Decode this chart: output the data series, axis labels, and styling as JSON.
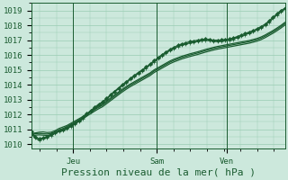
{
  "bg_color": "#cce8dc",
  "plot_bg_color": "#cce8dc",
  "grid_color": "#99ccb3",
  "line_color": "#1a5c30",
  "xlabel": "Pression niveau de la mer( hPa )",
  "xlabel_fontsize": 8,
  "tick_label_color": "#1a5c30",
  "tick_fontsize": 6.5,
  "ylim": [
    1009.7,
    1019.5
  ],
  "yticks": [
    1010,
    1011,
    1012,
    1013,
    1014,
    1015,
    1016,
    1017,
    1018,
    1019
  ],
  "vline_positions": [
    0.165,
    0.495,
    0.77
  ],
  "vline_labels": [
    "Jeu",
    "Sam",
    "Ven"
  ],
  "num_points": 65,
  "lines": [
    {
      "y": [
        1010.7,
        1010.75,
        1010.8,
        1010.82,
        1010.78,
        1010.8,
        1010.9,
        1011.05,
        1011.15,
        1011.25,
        1011.4,
        1011.55,
        1011.7,
        1011.85,
        1012.05,
        1012.2,
        1012.38,
        1012.55,
        1012.7,
        1012.9,
        1013.1,
        1013.3,
        1013.5,
        1013.7,
        1013.88,
        1014.05,
        1014.2,
        1014.35,
        1014.5,
        1014.65,
        1014.8,
        1015.0,
        1015.15,
        1015.3,
        1015.45,
        1015.6,
        1015.72,
        1015.82,
        1015.92,
        1016.0,
        1016.08,
        1016.15,
        1016.22,
        1016.3,
        1016.38,
        1016.45,
        1016.52,
        1016.58,
        1016.63,
        1016.68,
        1016.73,
        1016.78,
        1016.83,
        1016.88,
        1016.93,
        1016.98,
        1017.05,
        1017.12,
        1017.22,
        1017.35,
        1017.5,
        1017.65,
        1017.82,
        1018.0,
        1018.2
      ],
      "marker": false,
      "linewidth": 0.9
    },
    {
      "y": [
        1010.65,
        1010.7,
        1010.72,
        1010.7,
        1010.68,
        1010.72,
        1010.82,
        1010.95,
        1011.05,
        1011.18,
        1011.32,
        1011.48,
        1011.62,
        1011.78,
        1011.98,
        1012.15,
        1012.32,
        1012.48,
        1012.62,
        1012.82,
        1013.02,
        1013.22,
        1013.42,
        1013.62,
        1013.8,
        1013.97,
        1014.12,
        1014.27,
        1014.42,
        1014.57,
        1014.72,
        1014.92,
        1015.07,
        1015.22,
        1015.37,
        1015.52,
        1015.64,
        1015.74,
        1015.84,
        1015.92,
        1016.0,
        1016.07,
        1016.14,
        1016.22,
        1016.3,
        1016.37,
        1016.44,
        1016.5,
        1016.55,
        1016.6,
        1016.65,
        1016.7,
        1016.75,
        1016.8,
        1016.85,
        1016.9,
        1016.97,
        1017.04,
        1017.14,
        1017.27,
        1017.42,
        1017.57,
        1017.74,
        1017.92,
        1018.12
      ],
      "marker": false,
      "linewidth": 0.9
    },
    {
      "y": [
        1010.55,
        1010.6,
        1010.62,
        1010.6,
        1010.58,
        1010.62,
        1010.72,
        1010.85,
        1010.95,
        1011.08,
        1011.22,
        1011.38,
        1011.52,
        1011.68,
        1011.88,
        1012.05,
        1012.22,
        1012.38,
        1012.52,
        1012.72,
        1012.92,
        1013.12,
        1013.32,
        1013.52,
        1013.7,
        1013.87,
        1014.02,
        1014.17,
        1014.32,
        1014.47,
        1014.62,
        1014.82,
        1014.97,
        1015.12,
        1015.27,
        1015.42,
        1015.54,
        1015.64,
        1015.74,
        1015.82,
        1015.9,
        1015.97,
        1016.04,
        1016.12,
        1016.2,
        1016.27,
        1016.34,
        1016.4,
        1016.45,
        1016.5,
        1016.55,
        1016.6,
        1016.65,
        1016.7,
        1016.75,
        1016.8,
        1016.87,
        1016.94,
        1017.04,
        1017.17,
        1017.32,
        1017.47,
        1017.64,
        1017.82,
        1018.02
      ],
      "marker": false,
      "linewidth": 0.9
    },
    {
      "y": [
        1010.85,
        1010.5,
        1010.35,
        1010.42,
        1010.52,
        1010.65,
        1010.8,
        1010.92,
        1011.0,
        1011.1,
        1011.25,
        1011.42,
        1011.6,
        1011.8,
        1012.05,
        1012.25,
        1012.48,
        1012.68,
        1012.85,
        1013.08,
        1013.32,
        1013.55,
        1013.78,
        1014.0,
        1014.2,
        1014.42,
        1014.62,
        1014.82,
        1015.0,
        1015.2,
        1015.4,
        1015.62,
        1015.82,
        1016.02,
        1016.2,
        1016.38,
        1016.52,
        1016.65,
        1016.75,
        1016.82,
        1016.9,
        1016.95,
        1017.0,
        1017.05,
        1017.08,
        1017.05,
        1017.0,
        1017.0,
        1017.02,
        1017.05,
        1017.08,
        1017.15,
        1017.25,
        1017.35,
        1017.45,
        1017.55,
        1017.65,
        1017.78,
        1017.92,
        1018.08,
        1018.3,
        1018.55,
        1018.78,
        1019.0,
        1019.15
      ],
      "marker": true,
      "marker_style": "D",
      "marker_size": 2.0,
      "linewidth": 0.9
    },
    {
      "y": [
        1010.75,
        1010.4,
        1010.25,
        1010.35,
        1010.45,
        1010.58,
        1010.72,
        1010.85,
        1010.93,
        1011.03,
        1011.18,
        1011.35,
        1011.53,
        1011.73,
        1011.98,
        1012.18,
        1012.42,
        1012.62,
        1012.78,
        1013.02,
        1013.26,
        1013.5,
        1013.72,
        1013.93,
        1014.13,
        1014.35,
        1014.55,
        1014.75,
        1014.93,
        1015.13,
        1015.33,
        1015.55,
        1015.75,
        1015.95,
        1016.13,
        1016.3,
        1016.44,
        1016.57,
        1016.67,
        1016.74,
        1016.82,
        1016.87,
        1016.92,
        1016.97,
        1017.0,
        1016.97,
        1016.92,
        1016.92,
        1016.94,
        1016.97,
        1017.0,
        1017.07,
        1017.17,
        1017.27,
        1017.37,
        1017.47,
        1017.57,
        1017.7,
        1017.84,
        1018.0,
        1018.22,
        1018.47,
        1018.7,
        1018.92,
        1019.08
      ],
      "marker": true,
      "marker_style": "+",
      "marker_size": 3.0,
      "linewidth": 0.9
    }
  ]
}
